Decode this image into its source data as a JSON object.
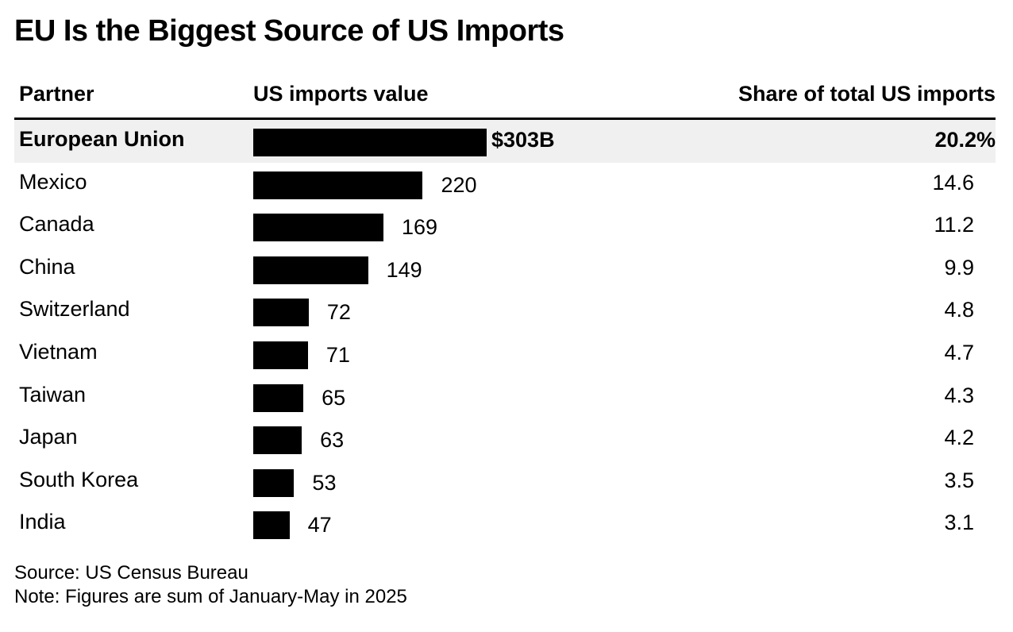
{
  "title": "EU Is the Biggest Source of US Imports",
  "columns": {
    "partner": "Partner",
    "value": "US imports value",
    "share": "Share of total US imports"
  },
  "chart_data": {
    "type": "bar",
    "orientation": "horizontal",
    "title": "EU Is the Biggest Source of US Imports",
    "categories": [
      "European Union",
      "Mexico",
      "Canada",
      "China",
      "Switzerland",
      "Vietnam",
      "Taiwan",
      "Japan",
      "South Korea",
      "India"
    ],
    "values": [
      303,
      220,
      169,
      149,
      72,
      71,
      65,
      63,
      53,
      47
    ],
    "value_labels": [
      "$303B",
      "220",
      "169",
      "149",
      "72",
      "71",
      "65",
      "63",
      "53",
      "47"
    ],
    "shares": [
      "20.2%",
      "14.6",
      "11.2",
      "9.9",
      "4.8",
      "4.7",
      "4.3",
      "4.2",
      "3.5",
      "3.1"
    ],
    "highlight_index": 0,
    "xlim": [
      0,
      303
    ],
    "bar_color": "#000000",
    "highlight_row_color": "#f0f0f0",
    "grid": false
  },
  "footer": {
    "source": "Source: US Census Bureau",
    "note": "Note: Figures are sum of January-May in 2025"
  }
}
